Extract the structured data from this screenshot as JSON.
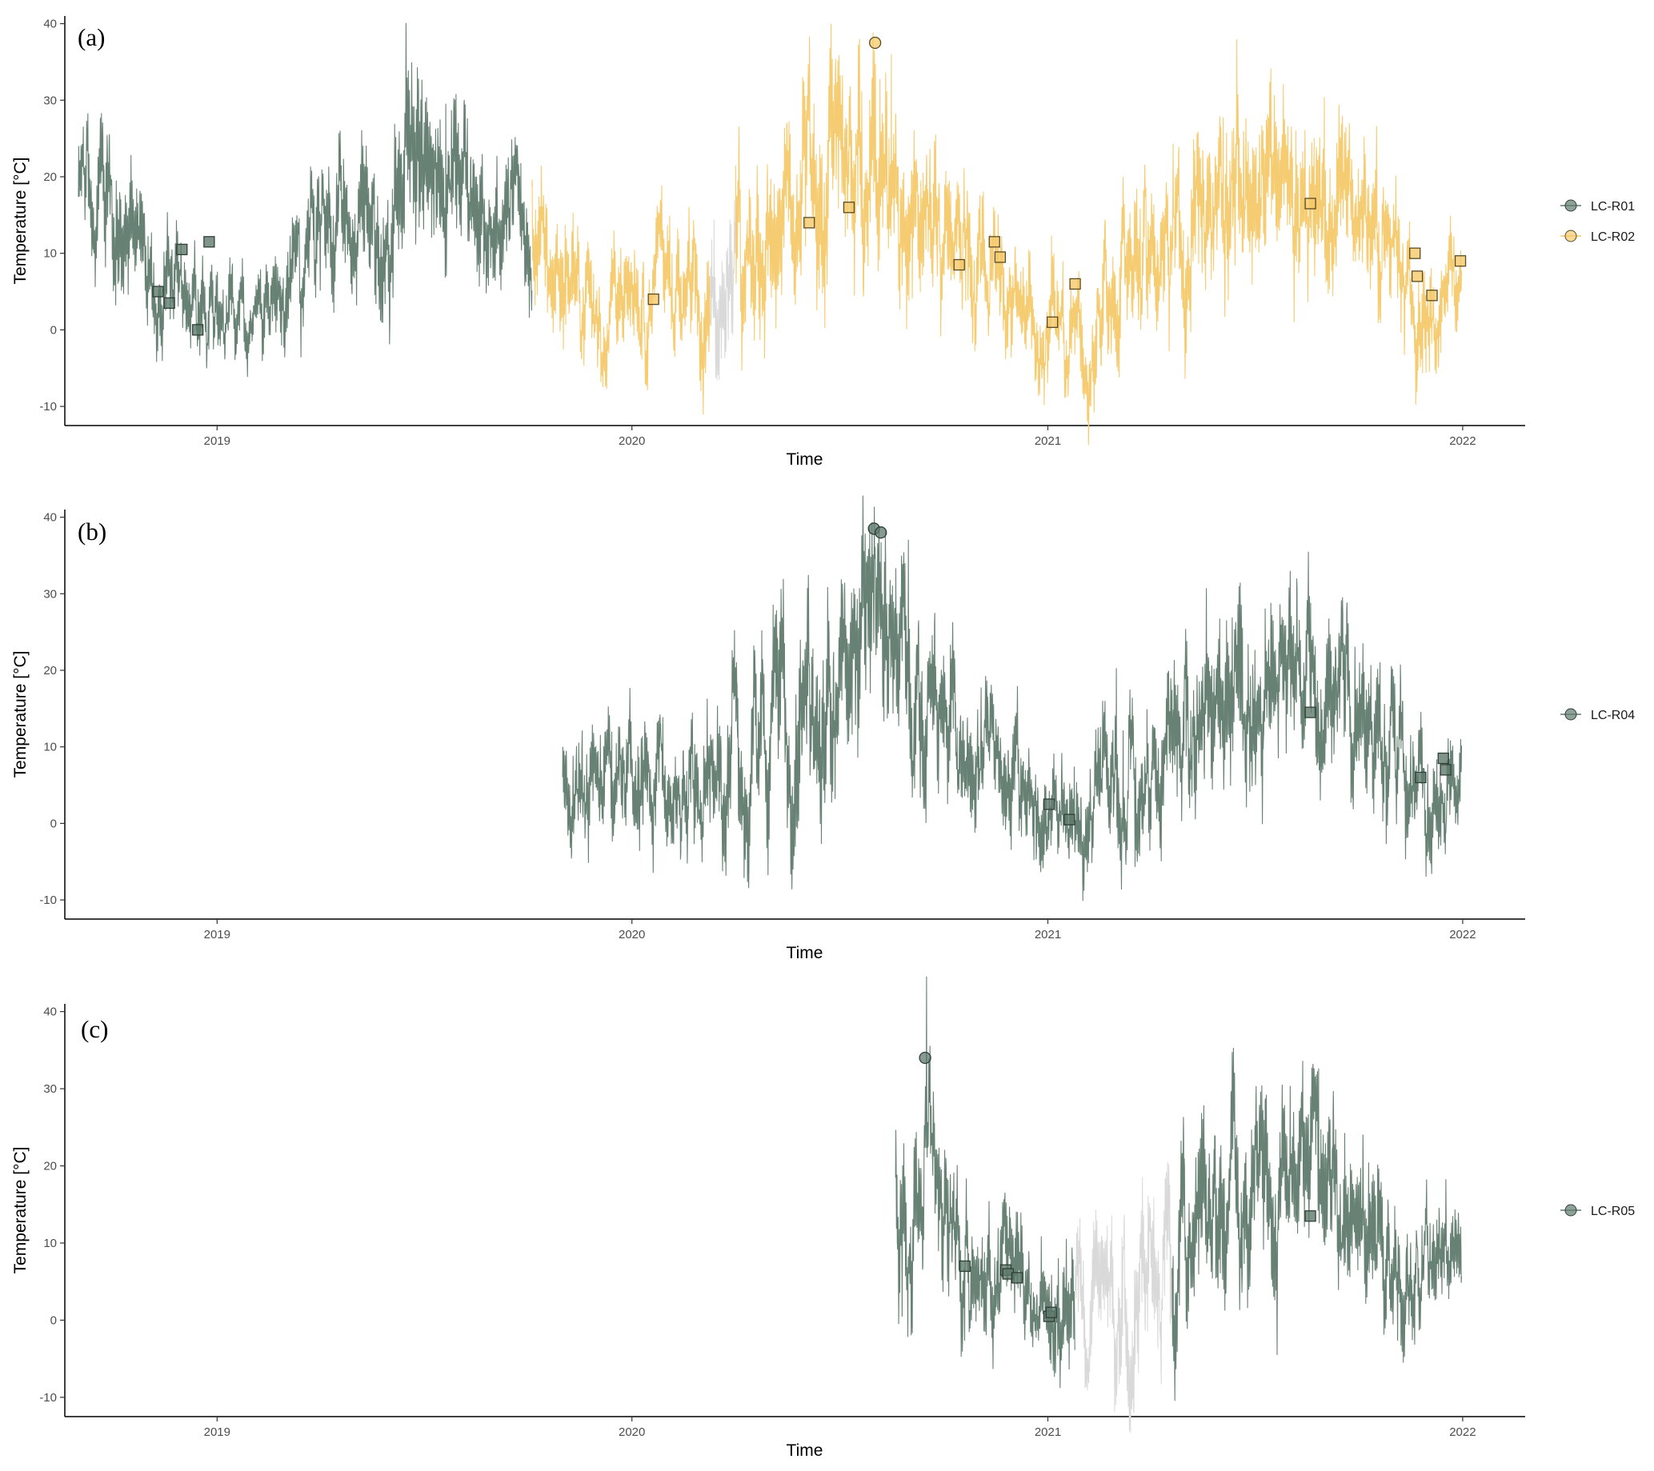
{
  "chart_data": [
    {
      "type": "line",
      "panel_label": "(a)",
      "xlabel": "Time",
      "ylabel": "Temperature [°C]",
      "ylim": [
        -12.5,
        41
      ],
      "yticks": [
        "40",
        "30",
        "20",
        "10",
        "0",
        "-10"
      ],
      "xlim": [
        "2018-08-20",
        "2022-02-25"
      ],
      "xticks": [
        "2019",
        "2020",
        "2021",
        "2022"
      ],
      "grid": false,
      "legend_position": "right",
      "series": [
        {
          "name": "LC-R01",
          "color": "#5f7a6d",
          "dark": "#2f3f37",
          "data_range": [
            "2018-09-01",
            "2019-10-05"
          ],
          "envelope": {
            "dates": [
              "2018-09-01",
              "2018-10-01",
              "2018-11-01",
              "2018-12-01",
              "2019-01-01",
              "2019-02-01",
              "2019-03-01",
              "2019-04-01",
              "2019-05-01",
              "2019-06-01",
              "2019-07-01",
              "2019-08-01",
              "2019-09-01",
              "2019-10-01"
            ],
            "mean": [
              17,
              14,
              8,
              5,
              3,
              0,
              6,
              9,
              12,
              16,
              21,
              19,
              16,
              13
            ],
            "range": [
              7,
              9,
              7,
              6,
              6,
              4,
              7,
              8,
              9,
              10,
              12,
              10,
              8,
              7
            ]
          },
          "markers": [
            {
              "date": "2018-11-10",
              "value": 5,
              "shape": "square"
            },
            {
              "date": "2018-11-20",
              "value": 3.5,
              "shape": "square"
            },
            {
              "date": "2018-12-01",
              "value": 10.5,
              "shape": "square"
            },
            {
              "date": "2018-12-15",
              "value": 0,
              "shape": "square"
            },
            {
              "date": "2018-12-25",
              "value": 11.5,
              "shape": "square"
            }
          ]
        },
        {
          "name": "LC-R02",
          "color": "#f5c96a",
          "dark": "#5a4a20",
          "data_range": [
            "2019-10-05",
            "2021-12-31"
          ],
          "gap": [
            "2020-03-10",
            "2020-04-01"
          ],
          "envelope": {
            "dates": [
              "2019-10-05",
              "2019-11-01",
              "2019-12-01",
              "2020-01-01",
              "2020-02-01",
              "2020-03-01",
              "2020-04-01",
              "2020-05-01",
              "2020-06-01",
              "2020-07-01",
              "2020-08-01",
              "2020-09-01",
              "2020-10-01",
              "2020-11-01",
              "2020-12-01",
              "2021-01-01",
              "2021-02-01",
              "2021-03-01",
              "2021-04-01",
              "2021-05-01",
              "2021-06-01",
              "2021-07-01",
              "2021-08-01",
              "2021-09-01",
              "2021-10-01",
              "2021-11-01",
              "2021-12-01",
              "2021-12-31"
            ],
            "mean": [
              13,
              8,
              4,
              4,
              5,
              7,
              11,
              15,
              18,
              20,
              24,
              19,
              14,
              10,
              6,
              2,
              -1,
              6,
              8,
              11,
              17,
              19,
              18,
              17,
              13,
              8,
              4,
              8
            ],
            "range": [
              8,
              8,
              6,
              7,
              7,
              8,
              10,
              11,
              12,
              12,
              14,
              10,
              9,
              8,
              7,
              6,
              7,
              8,
              9,
              10,
              11,
              11,
              10,
              10,
              9,
              8,
              7,
              6
            ]
          },
          "markers": [
            {
              "date": "2020-01-20",
              "value": 4,
              "shape": "square"
            },
            {
              "date": "2020-06-05",
              "value": 14,
              "shape": "square"
            },
            {
              "date": "2020-07-10",
              "value": 16,
              "shape": "square"
            },
            {
              "date": "2020-08-02",
              "value": 37.5,
              "shape": "circle"
            },
            {
              "date": "2020-10-15",
              "value": 8.5,
              "shape": "square"
            },
            {
              "date": "2020-11-15",
              "value": 11.5,
              "shape": "square"
            },
            {
              "date": "2020-11-20",
              "value": 9.5,
              "shape": "square"
            },
            {
              "date": "2021-01-05",
              "value": 1,
              "shape": "square"
            },
            {
              "date": "2021-01-25",
              "value": 6,
              "shape": "square"
            },
            {
              "date": "2021-08-20",
              "value": 16.5,
              "shape": "square"
            },
            {
              "date": "2021-11-20",
              "value": 10,
              "shape": "square"
            },
            {
              "date": "2021-11-22",
              "value": 7,
              "shape": "square"
            },
            {
              "date": "2021-12-05",
              "value": 4.5,
              "shape": "square"
            },
            {
              "date": "2021-12-30",
              "value": 9,
              "shape": "square"
            }
          ]
        }
      ],
      "gap_color": "#d9d9d9"
    },
    {
      "type": "line",
      "panel_label": "(b)",
      "xlabel": "Time",
      "ylabel": "Temperature [°C]",
      "ylim": [
        -12.5,
        41
      ],
      "yticks": [
        "40",
        "30",
        "20",
        "10",
        "0",
        "-10"
      ],
      "xlim": [
        "2018-08-20",
        "2022-02-25"
      ],
      "xticks": [
        "2019",
        "2020",
        "2021",
        "2022"
      ],
      "grid": false,
      "legend_position": "right",
      "series": [
        {
          "name": "LC-R04",
          "color": "#5f7a6d",
          "dark": "#2f3f37",
          "data_range": [
            "2019-11-01",
            "2021-12-31"
          ],
          "envelope": {
            "dates": [
              "2019-11-01",
              "2019-12-01",
              "2020-01-01",
              "2020-02-01",
              "2020-03-01",
              "2020-04-01",
              "2020-05-01",
              "2020-06-01",
              "2020-07-01",
              "2020-08-01",
              "2020-09-01",
              "2020-10-01",
              "2020-11-01",
              "2020-12-01",
              "2021-01-01",
              "2021-02-01",
              "2021-03-01",
              "2021-04-01",
              "2021-05-01",
              "2021-06-01",
              "2021-07-01",
              "2021-08-01",
              "2021-09-01",
              "2021-10-01",
              "2021-11-01",
              "2021-12-01",
              "2021-12-31"
            ],
            "mean": [
              5,
              5,
              4,
              5,
              6,
              9,
              13,
              16,
              18,
              22,
              19,
              12,
              10,
              6,
              2,
              -1,
              5,
              7,
              10,
              16,
              18,
              17,
              16,
              13,
              8,
              5,
              8
            ],
            "range": [
              7,
              7,
              7,
              7,
              8,
              10,
              11,
              12,
              12,
              14,
              10,
              9,
              8,
              7,
              6,
              7,
              8,
              9,
              10,
              11,
              11,
              10,
              10,
              9,
              8,
              7,
              6
            ]
          },
          "markers": [
            {
              "date": "2020-08-01",
              "value": 38.5,
              "shape": "circle"
            },
            {
              "date": "2020-08-07",
              "value": 38,
              "shape": "circle"
            },
            {
              "date": "2021-01-02",
              "value": 2.5,
              "shape": "square"
            },
            {
              "date": "2021-01-20",
              "value": 0.5,
              "shape": "square"
            },
            {
              "date": "2021-08-20",
              "value": 14.5,
              "shape": "square"
            },
            {
              "date": "2021-11-25",
              "value": 6,
              "shape": "square"
            },
            {
              "date": "2021-12-15",
              "value": 8.5,
              "shape": "square"
            },
            {
              "date": "2021-12-17",
              "value": 7,
              "shape": "square"
            }
          ]
        }
      ]
    },
    {
      "type": "line",
      "panel_label": "(c)",
      "xlabel": "Time",
      "ylabel": "Temperature [°C]",
      "ylim": [
        -12.5,
        41
      ],
      "yticks": [
        "40",
        "30",
        "20",
        "10",
        "0",
        "-10"
      ],
      "xlim": [
        "2018-08-20",
        "2022-02-25"
      ],
      "xticks": [
        "2019",
        "2020",
        "2021",
        "2022"
      ],
      "grid": false,
      "legend_position": "right",
      "series": [
        {
          "name": "LC-R05",
          "color": "#5f7a6d",
          "dark": "#2f3f37",
          "data_range": [
            "2020-08-20",
            "2021-12-31"
          ],
          "gap": [
            "2021-01-25",
            "2021-04-20"
          ],
          "envelope": {
            "dates": [
              "2020-08-20",
              "2020-09-01",
              "2020-10-01",
              "2020-11-01",
              "2020-12-01",
              "2021-01-01",
              "2021-02-01",
              "2021-03-01",
              "2021-04-01",
              "2021-05-01",
              "2021-06-01",
              "2021-07-01",
              "2021-08-01",
              "2021-09-01",
              "2021-10-01",
              "2021-11-01",
              "2021-12-01",
              "2021-12-31"
            ],
            "mean": [
              18,
              17,
              12,
              8,
              5,
              2,
              3,
              5,
              7,
              11,
              17,
              18,
              17,
              16,
              12,
              8,
              4,
              8
            ],
            "range": [
              10,
              10,
              9,
              8,
              7,
              6,
              9,
              10,
              10,
              10,
              11,
              11,
              10,
              10,
              9,
              8,
              7,
              6
            ]
          },
          "markers": [
            {
              "date": "2020-09-15",
              "value": 34,
              "shape": "circle"
            },
            {
              "date": "2020-10-20",
              "value": 7,
              "shape": "square"
            },
            {
              "date": "2020-11-25",
              "value": 6.5,
              "shape": "square"
            },
            {
              "date": "2020-11-27",
              "value": 6,
              "shape": "square"
            },
            {
              "date": "2020-12-05",
              "value": 5.5,
              "shape": "square"
            },
            {
              "date": "2021-01-02",
              "value": 0.5,
              "shape": "square"
            },
            {
              "date": "2021-01-04",
              "value": 1,
              "shape": "square"
            },
            {
              "date": "2021-08-20",
              "value": 13.5,
              "shape": "square"
            }
          ]
        }
      ],
      "gap_color": "#d9d9d9"
    }
  ]
}
